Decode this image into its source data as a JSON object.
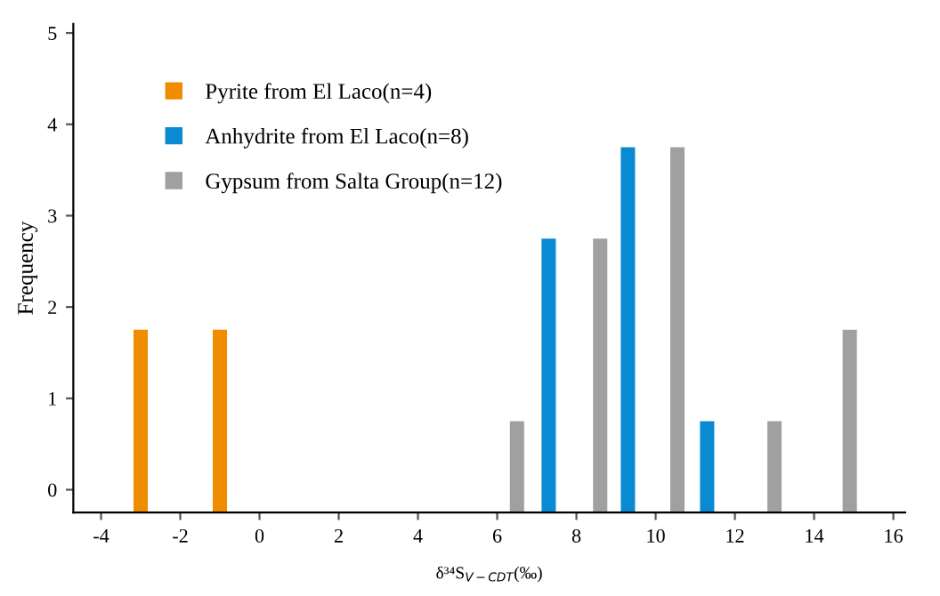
{
  "chart_data": {
    "type": "bar",
    "xlabel": "δ³⁴S$_{V−CDT}$(‰)",
    "ylabel": "Frequency",
    "series": [
      {
        "name": "Pyrite from El Laco(n=4)",
        "color": "#f08c00",
        "x": [
          -3.0,
          -1.0
        ],
        "values": [
          2,
          2
        ],
        "base": [
          -0.25,
          -0.25
        ]
      },
      {
        "name": "Anhydrite from El Laco(n=8)",
        "color": "#0a8ad2",
        "x": [
          7.3,
          9.3,
          11.3
        ],
        "values": [
          3,
          4,
          1
        ],
        "base": [
          -0.25,
          -0.25,
          -0.25
        ]
      },
      {
        "name": "Gypsum from Salta Group(n=12)",
        "color": "#a0a0a0",
        "x": [
          6.5,
          8.6,
          10.55,
          13.0,
          14.9
        ],
        "values": [
          1,
          3,
          4,
          1,
          2
        ],
        "base": [
          -0.25,
          -0.25,
          -0.25,
          -0.25,
          -0.25
        ]
      }
    ],
    "xlim": [
      -4.7,
      16.3
    ],
    "xticks": [
      -4,
      -2,
      0,
      2,
      4,
      6,
      8,
      10,
      12,
      14,
      16
    ],
    "ylim": [
      -0.25,
      5.1
    ],
    "yticks": [
      0,
      1,
      2,
      3,
      4,
      5
    ],
    "grid": false,
    "legend": "top left",
    "marker": "square"
  }
}
